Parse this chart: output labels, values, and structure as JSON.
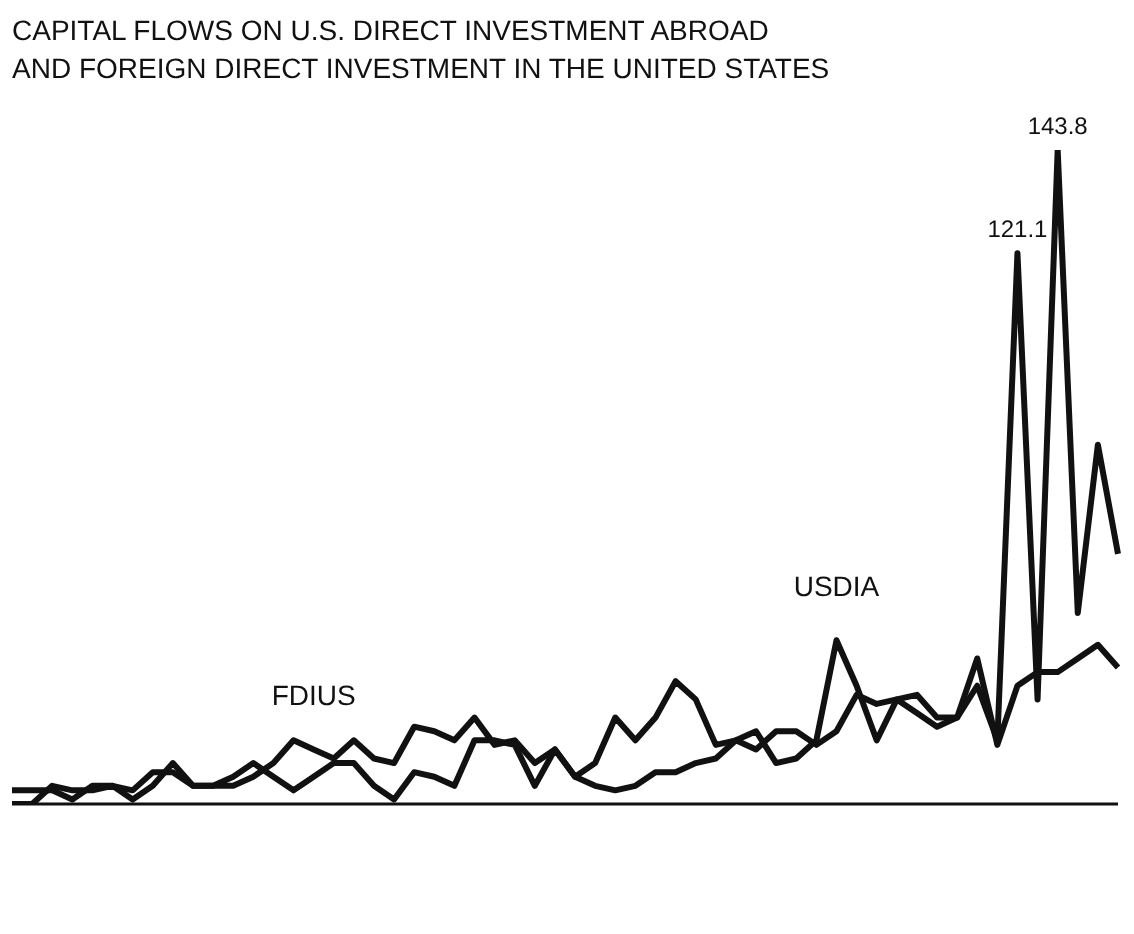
{
  "chart_data": {
    "type": "line",
    "title": "CAPITAL FLOWS ON U.S. DIRECT INVESTMENT ABROAD\nAND FOREIGN DIRECT INVESTMENT IN THE UNITED STATES",
    "grid": false,
    "legend": false,
    "marker": "none",
    "line_style": "solid",
    "tick_labels": false,
    "categories": [
      null,
      null,
      null,
      null,
      null,
      null,
      null,
      null,
      null,
      null,
      null,
      null,
      null,
      null,
      null,
      null,
      null,
      null,
      null,
      null,
      null,
      null,
      null,
      null,
      null,
      null,
      null,
      null,
      null,
      null,
      null,
      null,
      null,
      null,
      null,
      null,
      null,
      null,
      null,
      null,
      null,
      null,
      null,
      null,
      null,
      null,
      null,
      null,
      null,
      null,
      null,
      null,
      null,
      null,
      null,
      null
    ],
    "series": [
      {
        "name": "FDIUS",
        "color": "#111111",
        "values": [
          3,
          3,
          3,
          1,
          4,
          4,
          3,
          7,
          7,
          4,
          4,
          4,
          6,
          9,
          14,
          12,
          10,
          14,
          10,
          9,
          17,
          16,
          14,
          19,
          13,
          14,
          9,
          12,
          6,
          4,
          3,
          4,
          7,
          7,
          9,
          10,
          14,
          12,
          16,
          16,
          13,
          16,
          24,
          22,
          23,
          20,
          17,
          19,
          26,
          14,
          121.1,
          23,
          143.8,
          42,
          79,
          55
        ],
        "value_labels": [
          null,
          null,
          null,
          null,
          null,
          null,
          null,
          null,
          null,
          null,
          null,
          null,
          null,
          null,
          null,
          null,
          null,
          null,
          null,
          null,
          null,
          null,
          null,
          null,
          null,
          null,
          null,
          null,
          null,
          null,
          null,
          null,
          null,
          null,
          null,
          null,
          null,
          null,
          null,
          null,
          null,
          null,
          null,
          null,
          null,
          null,
          null,
          null,
          null,
          null,
          "121.1",
          null,
          "143.8",
          null,
          null,
          null
        ]
      },
      {
        "name": "USDIA",
        "color": "#111111",
        "values": [
          0,
          0,
          4,
          3,
          3,
          4,
          1,
          4,
          9,
          4,
          4,
          6,
          9,
          6,
          3,
          6,
          9,
          9,
          4,
          1,
          7,
          6,
          4,
          14,
          14,
          13,
          4,
          12,
          6,
          9,
          19,
          14,
          19,
          27,
          23,
          13,
          14,
          16,
          9,
          10,
          14,
          36,
          26,
          14,
          23,
          24,
          19,
          19,
          32,
          13,
          26,
          29,
          29,
          32,
          35,
          30
        ]
      }
    ]
  }
}
